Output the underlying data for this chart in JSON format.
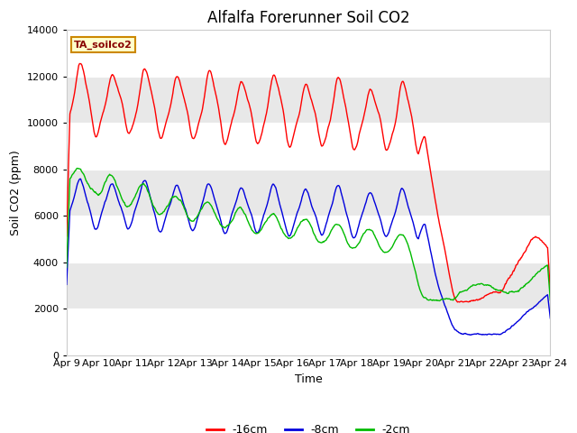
{
  "title": "Alfalfa Forerunner Soil CO2",
  "xlabel": "Time",
  "ylabel": "Soil CO2 (ppm)",
  "ylim": [
    0,
    14000
  ],
  "yticks": [
    0,
    2000,
    4000,
    6000,
    8000,
    10000,
    12000,
    14000
  ],
  "x_labels": [
    "Apr 9",
    "Apr 10",
    "Apr 11",
    "Apr 12",
    "Apr 13",
    "Apr 14",
    "Apr 15",
    "Apr 16",
    "Apr 17",
    "Apr 18",
    "Apr 19",
    "Apr 20",
    "Apr 21",
    "Apr 22",
    "Apr 23",
    "Apr 24"
  ],
  "sensor_label": "TA_soilco2",
  "line_16cm_color": "#ff0000",
  "line_8cm_color": "#0000dd",
  "line_2cm_color": "#00bb00",
  "legend_16cm": "-16cm",
  "legend_8cm": "-8cm",
  "legend_2cm": "-2cm",
  "bg_color": "#ffffff",
  "plot_bg_color": "#ffffff",
  "band_color": "#e8e8e8",
  "grid_color": "#ffffff",
  "title_fontsize": 12,
  "axis_fontsize": 9,
  "tick_fontsize": 8,
  "sensor_box_facecolor": "#ffffcc",
  "sensor_box_edgecolor": "#cc8800"
}
